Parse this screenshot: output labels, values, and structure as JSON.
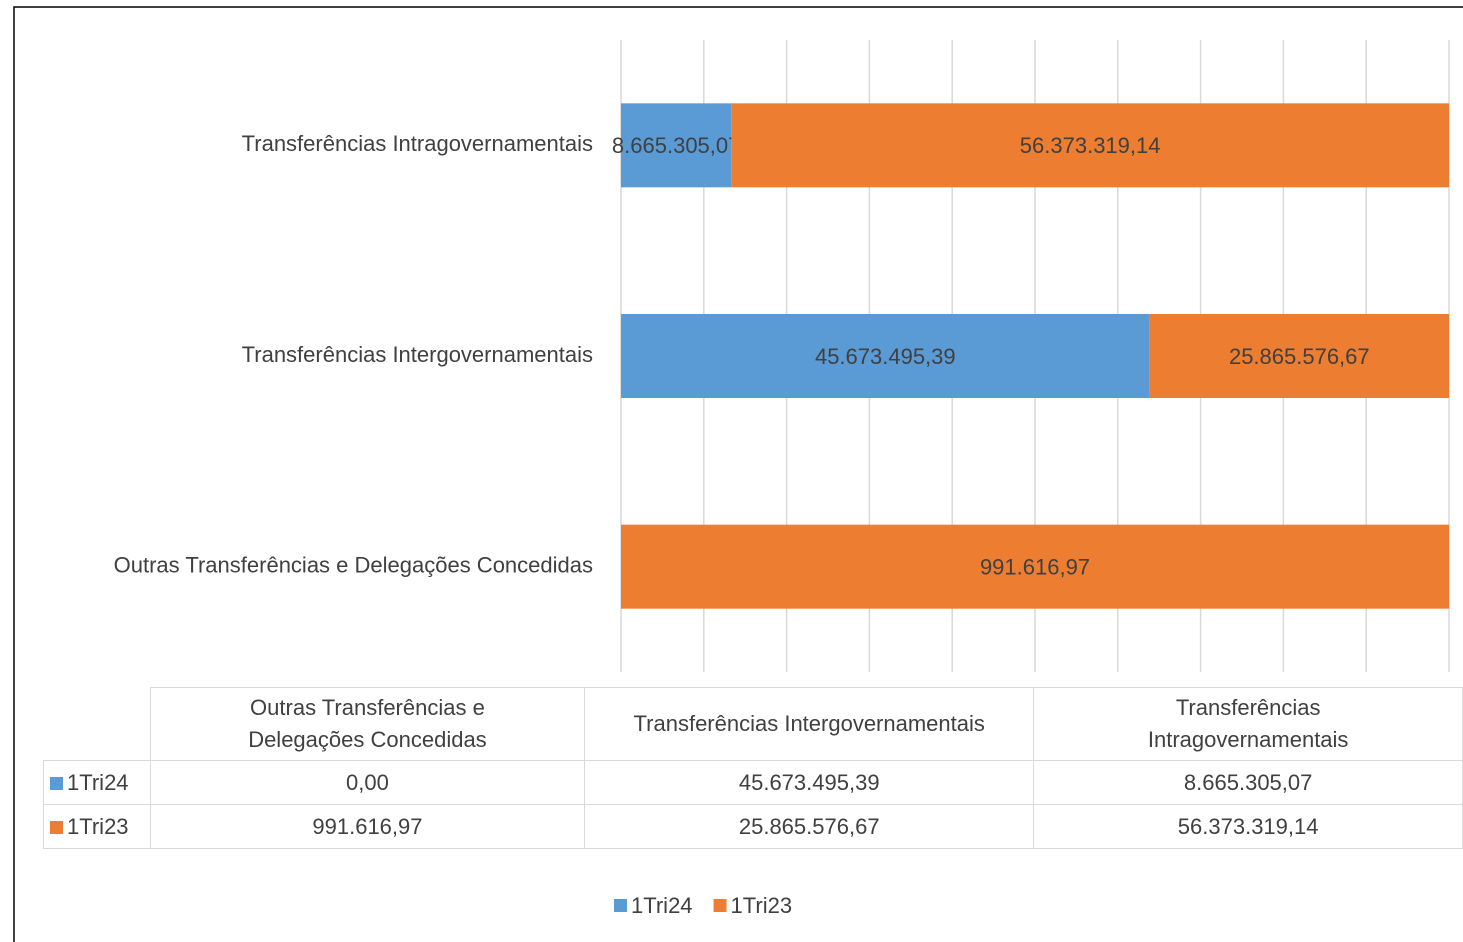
{
  "chart_data": {
    "type": "bar",
    "orientation": "horizontal",
    "stacked": "percent",
    "categories": [
      "Outras Transferências e Delegações Concedidas",
      "Transferências Intergovernamentais",
      "Transferências Intragovernamentais"
    ],
    "series": [
      {
        "name": "1Tri24",
        "color": "#5b9bd5",
        "values": [
          0,
          45673495.39,
          8665305.07
        ],
        "value_labels": [
          "0,00",
          "45.673.495,39",
          "8.665.305,07"
        ]
      },
      {
        "name": "1Tri23",
        "color": "#ed7d31",
        "values": [
          991616.97,
          25865576.67,
          56373319.14
        ],
        "value_labels": [
          "991.616,97",
          "25.865.576,67",
          "56.373.319,14"
        ]
      }
    ],
    "xlim": [
      0,
      100
    ],
    "xticks": [
      0,
      10,
      20,
      30,
      40,
      50,
      60,
      70,
      80,
      90,
      100
    ],
    "grid": true,
    "data_table": true,
    "legend": "bottom"
  }
}
